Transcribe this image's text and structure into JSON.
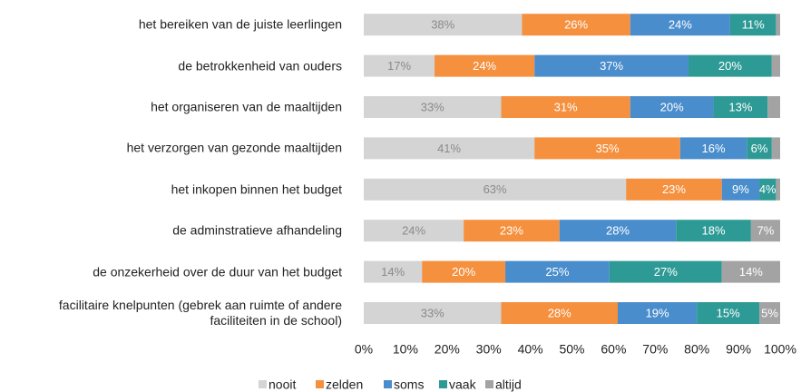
{
  "chart_data": {
    "type": "stacked-bar-horizontal",
    "categories": [
      "het bereiken van de juiste leerlingen",
      "de betrokkenheid van ouders",
      "het organiseren van de maaltijden",
      "het verzorgen van gezonde maaltijden",
      "het inkopen binnen het budget",
      "de adminstratieve afhandeling",
      "de onzekerheid over de duur van het budget",
      "facilitaire knelpunten (gebrek aan ruimte of andere faciliteiten in de school)"
    ],
    "series": [
      {
        "name": "nooit",
        "color": "#d4d4d4",
        "values": [
          38,
          17,
          33,
          41,
          63,
          24,
          14,
          33
        ],
        "value_labels": [
          "38%",
          "17%",
          "33%",
          "41%",
          "63%",
          "24%",
          "14%",
          "33%"
        ]
      },
      {
        "name": "zelden",
        "color": "#f5903e",
        "values": [
          26,
          24,
          31,
          35,
          23,
          23,
          20,
          28
        ],
        "value_labels": [
          "26%",
          "24%",
          "31%",
          "35%",
          "23%",
          "23%",
          "20%",
          "28%"
        ]
      },
      {
        "name": "soms",
        "color": "#4a8dcc",
        "values": [
          24,
          37,
          20,
          16,
          9,
          28,
          25,
          19
        ],
        "value_labels": [
          "24%",
          "37%",
          "20%",
          "16%",
          "9%",
          "28%",
          "25%",
          "19%"
        ]
      },
      {
        "name": "vaak",
        "color": "#2e9a95",
        "values": [
          11,
          20,
          13,
          6,
          4,
          18,
          27,
          15
        ],
        "value_labels": [
          "11%",
          "20%",
          "13%",
          "6%",
          "4%",
          "18%",
          "27%",
          "15%"
        ]
      },
      {
        "name": "altijd",
        "color": "#a3a3a3",
        "values": [
          1,
          2,
          3,
          2,
          1,
          7,
          14,
          5
        ],
        "value_labels": [
          null,
          null,
          null,
          null,
          null,
          "7%",
          "14%",
          "5%"
        ]
      }
    ],
    "xlim": [
      0,
      100
    ],
    "xticks": [
      {
        "value": 0,
        "label": "0%"
      },
      {
        "value": 10,
        "label": "10%"
      },
      {
        "value": 20,
        "label": "20%"
      },
      {
        "value": 30,
        "label": "30%"
      },
      {
        "value": 40,
        "label": "40%"
      },
      {
        "value": 50,
        "label": "50%"
      },
      {
        "value": 60,
        "label": "60%"
      },
      {
        "value": 70,
        "label": "70%"
      },
      {
        "value": 80,
        "label": "80%"
      },
      {
        "value": 90,
        "label": "90%"
      },
      {
        "value": 100,
        "label": "100%"
      }
    ],
    "legend": "bottom"
  }
}
